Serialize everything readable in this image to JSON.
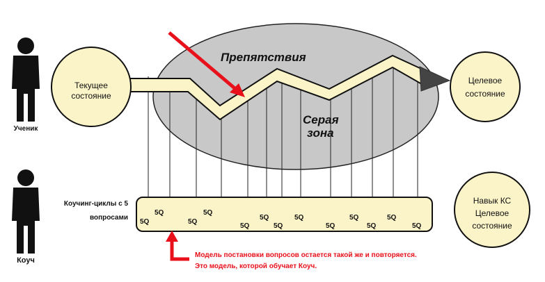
{
  "student": {
    "label": "Ученик"
  },
  "coach": {
    "label": "Коуч"
  },
  "current_state": {
    "line1": "Текущее",
    "line2": "состояние"
  },
  "target_state": {
    "line1": "Целевое",
    "line2": "состояние"
  },
  "skill_state": {
    "line1": "Навык КС",
    "line2": "Целевое",
    "line3": "состояние"
  },
  "obstacles": {
    "label": "Препятствия"
  },
  "grey_zone": {
    "line1": "Серая",
    "line2": "зона"
  },
  "coaching_cycles": {
    "line1": "Коучинг-циклы с 5",
    "line2": "вопросами"
  },
  "cycle_tag": "5Q",
  "note": {
    "line1": "Модель постановки вопросов остается такой же и повторяется.",
    "line2": "Это модель, которой обучает Коуч."
  },
  "colors": {
    "circle_fill": "#fbf4c8",
    "grey_zone": "#c8c8c8",
    "path_fill": "#fbf4c8",
    "arrow_head": "#444444",
    "red": "#e8101a"
  }
}
